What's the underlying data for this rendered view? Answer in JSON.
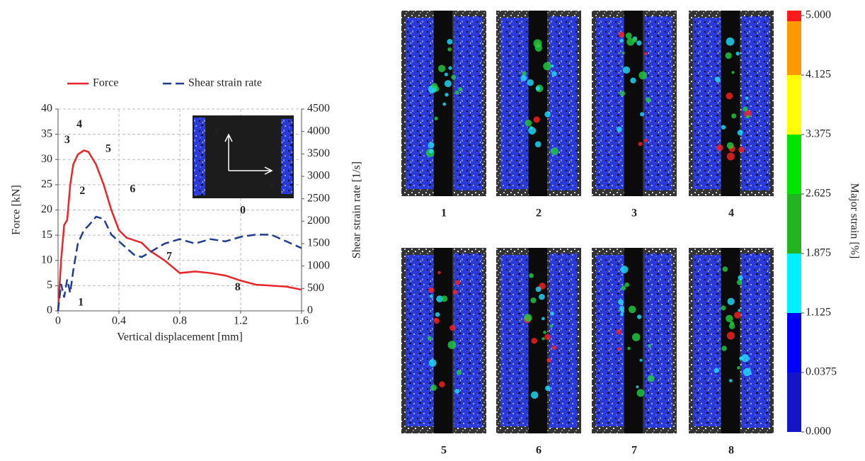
{
  "chart_data": [
    {
      "type": "line",
      "legend": "top",
      "grid": true,
      "xlabel": "Vertical displacement [mm]",
      "ylabel": "Force [kN]",
      "y2label": "Shear strain rate [1/s]",
      "x": [
        0,
        0.02,
        0.04,
        0.06,
        0.08,
        0.1,
        0.13,
        0.17,
        0.2,
        0.25,
        0.3,
        0.35,
        0.4,
        0.45,
        0.5,
        0.55,
        0.6,
        0.7,
        0.8,
        0.9,
        1.0,
        1.1,
        1.2,
        1.3,
        1.4,
        1.5,
        1.6
      ],
      "xlim": [
        0,
        1.6
      ],
      "xticks": [
        0,
        0.4,
        0.8,
        1.2,
        1.6
      ],
      "ylim": [
        0,
        40
      ],
      "yticks": [
        0,
        5,
        10,
        15,
        20,
        25,
        30,
        35,
        40
      ],
      "y2lim": [
        0,
        4500
      ],
      "y2ticks": [
        0,
        500,
        1000,
        1500,
        2000,
        2500,
        3000,
        3500,
        4000,
        4500
      ],
      "series": [
        {
          "name": "Force",
          "color": "#e8262a",
          "dash": false,
          "values": [
            0,
            10,
            17,
            18,
            25,
            29,
            31,
            31.8,
            31.5,
            29,
            25,
            20,
            16,
            14.5,
            14,
            13.5,
            12,
            10,
            7.5,
            7.8,
            7.5,
            7,
            6,
            5.2,
            5,
            4.8,
            4.2
          ]
        },
        {
          "name": "Shear strain rate",
          "color": "#1f3d8c",
          "dash": true,
          "axis": "y2",
          "values": [
            0,
            600,
            300,
            700,
            400,
            900,
            1500,
            1800,
            1900,
            2100,
            2050,
            1700,
            1550,
            1400,
            1250,
            1200,
            1300,
            1500,
            1600,
            1500,
            1600,
            1550,
            1650,
            1700,
            1700,
            1550,
            1400
          ]
        }
      ],
      "annotations": [
        {
          "text": "1",
          "x": 0.15,
          "y": 1.6
        },
        {
          "text": "2",
          "x": 0.16,
          "y": 23.7
        },
        {
          "text": "3",
          "x": 0.06,
          "y": 33.8
        },
        {
          "text": "4",
          "x": 0.14,
          "y": 36.9
        },
        {
          "text": "5",
          "x": 0.33,
          "y": 32
        },
        {
          "text": "6",
          "x": 0.49,
          "y": 24
        },
        {
          "text": "7",
          "x": 0.73,
          "y": 10.7
        },
        {
          "text": "8",
          "x": 1.18,
          "y": 4.6
        }
      ],
      "annotation_color": "#2e8bd8",
      "inset_label": "0",
      "inset_axes": [
        "y",
        "x"
      ]
    },
    {
      "type": "colorbar",
      "title": "Major strain [%]",
      "ticks": [
        {
          "value": 0,
          "label": "0.000"
        },
        {
          "value": 0.0375,
          "label": "0.0375"
        },
        {
          "value": 1.125,
          "label": "1.125"
        },
        {
          "value": 1.875,
          "label": "1.875"
        },
        {
          "value": 2.625,
          "label": "2.625"
        },
        {
          "value": 3.375,
          "label": "3.375"
        },
        {
          "value": 4.125,
          "label": "4.125"
        },
        {
          "value": 5,
          "label": "5.000"
        }
      ],
      "colors": [
        "#1414c8",
        "#0000ff",
        "#00f0ff",
        "#22b422",
        "#00e600",
        "#ffff00",
        "#ff9900",
        "#ff1a1a"
      ]
    }
  ],
  "panels": [
    "1",
    "2",
    "3",
    "4",
    "5",
    "6",
    "7",
    "8"
  ]
}
